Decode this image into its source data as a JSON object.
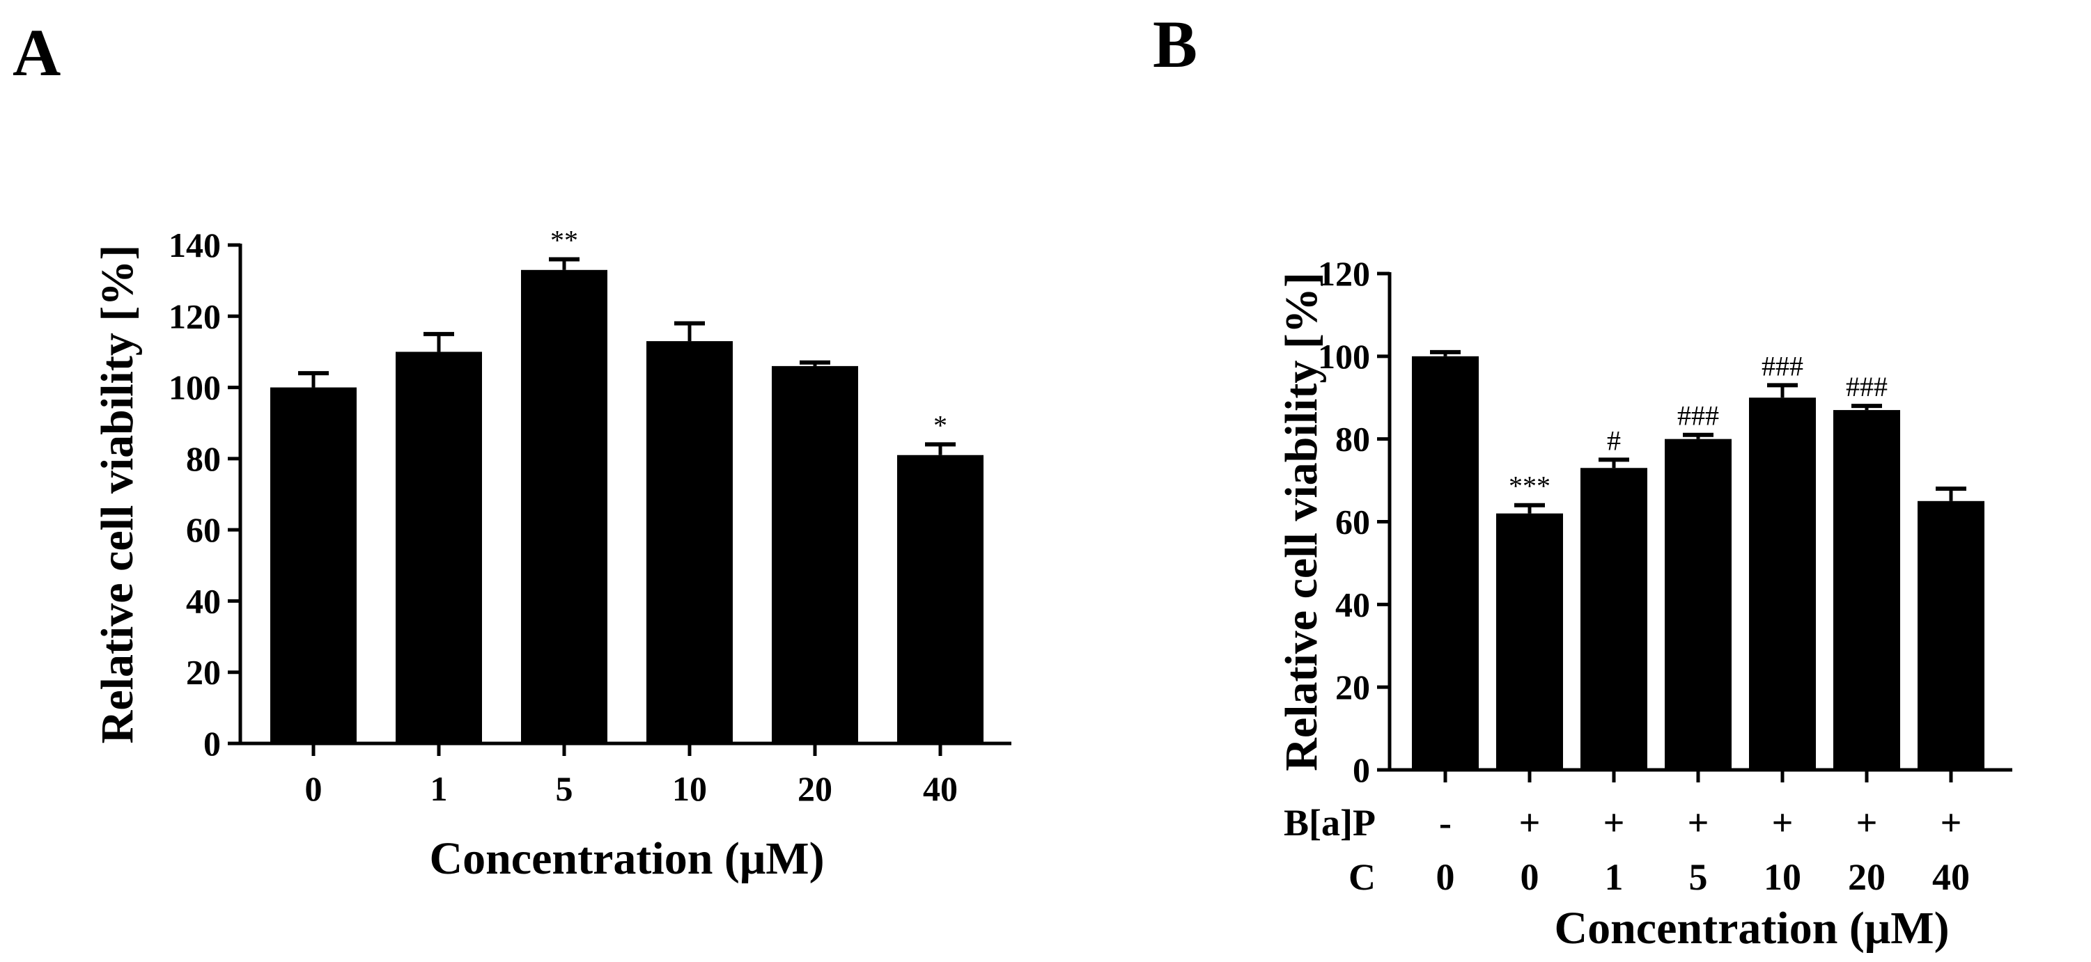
{
  "chart_data": [
    {
      "panel": "A",
      "type": "bar",
      "title": "",
      "xlabel": "Concentration (μM)",
      "ylabel": "Relative cell viability [%]",
      "ylim": [
        0,
        140
      ],
      "yticks": [
        "0",
        "20",
        "40",
        "60",
        "80",
        "100",
        "120",
        "140"
      ],
      "categories": [
        "0",
        "1",
        "5",
        "10",
        "20",
        "40"
      ],
      "values": [
        100,
        110,
        133,
        113,
        106,
        81
      ],
      "errors": [
        4,
        5,
        3,
        5,
        1,
        3
      ],
      "significance": [
        "",
        "",
        "**",
        "",
        "",
        "*"
      ],
      "bar_color": "#000000",
      "grid": false
    },
    {
      "panel": "B",
      "type": "bar",
      "title": "",
      "xlabel": "Concentration (μM)",
      "ylabel": "Relative cell viability [%]",
      "ylim": [
        0,
        120
      ],
      "yticks": [
        "0",
        "20",
        "40",
        "60",
        "80",
        "100",
        "120"
      ],
      "categories": [
        "0",
        "0",
        "1",
        "5",
        "10",
        "20",
        "40"
      ],
      "values": [
        100,
        62,
        73,
        80,
        90,
        87,
        65
      ],
      "errors": [
        1,
        2,
        2,
        1,
        3,
        1,
        3
      ],
      "significance": [
        "",
        "***",
        "#",
        "###",
        "###",
        "###",
        ""
      ],
      "treatment_rows": [
        {
          "label": "B[a]P",
          "values": [
            "-",
            "+",
            "+",
            "+",
            "+",
            "+",
            "+"
          ]
        },
        {
          "label": "C",
          "values": [
            "0",
            "0",
            "1",
            "5",
            "10",
            "20",
            "40"
          ]
        }
      ],
      "bar_color": "#000000",
      "grid": false
    }
  ]
}
